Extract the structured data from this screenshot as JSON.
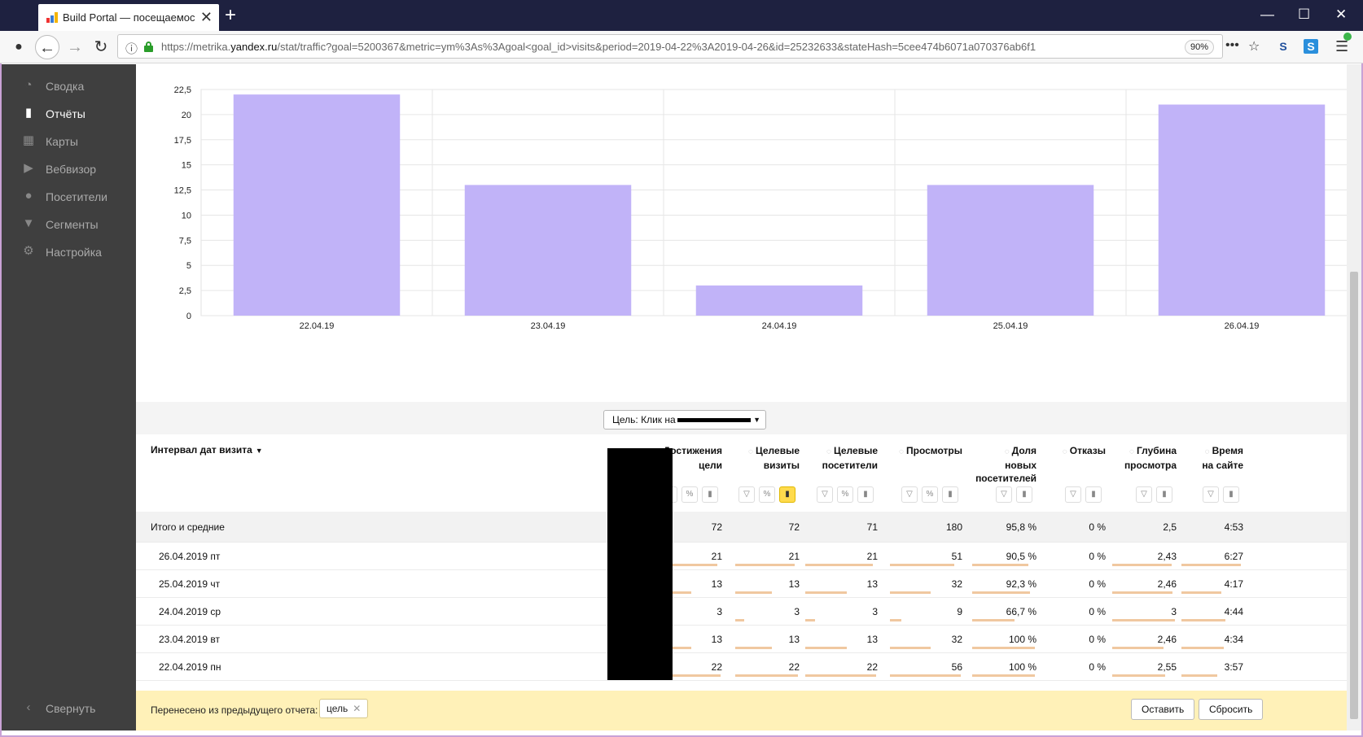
{
  "browser": {
    "tab_title": "Build Portal — посещаемость",
    "tab_close": "✕",
    "new_tab": "+",
    "url_prefix": "https://metrika.",
    "url_domain": "yandex.ru",
    "url_rest": "/stat/traffic?goal=5200367&metric=ym%3As%3Agoal<goal_id>visits&period=2019-04-22%3A2019-04-26&id=25232633&stateHash=5cee474b6071a070376ab6f1",
    "zoom": "90%",
    "colors": {
      "titlebar": "#1e2140",
      "lock": "#2a9d2a"
    }
  },
  "sidebar": {
    "items": [
      {
        "label": "Сводка",
        "icon": "dashboard-icon"
      },
      {
        "label": "Отчёты",
        "icon": "bar-chart-icon",
        "active": true
      },
      {
        "label": "Карты",
        "icon": "map-icon"
      },
      {
        "label": "Вебвизор",
        "icon": "play-icon"
      },
      {
        "label": "Посетители",
        "icon": "user-icon"
      },
      {
        "label": "Сегменты",
        "icon": "filter-icon"
      },
      {
        "label": "Настройка",
        "icon": "gear-icon"
      }
    ],
    "collapse_label": "Свернуть"
  },
  "chart_data": {
    "type": "bar",
    "categories": [
      "22.04.19",
      "23.04.19",
      "24.04.19",
      "25.04.19",
      "26.04.19"
    ],
    "values": [
      22,
      13,
      3,
      13,
      21
    ],
    "yticks": [
      "0",
      "2,5",
      "5",
      "7,5",
      "10",
      "12,5",
      "15",
      "17,5",
      "20",
      "22,5"
    ],
    "ylim": [
      0,
      22.5
    ],
    "grid": true,
    "bar_color": "#c1b3f8"
  },
  "table": {
    "goal_selector_label": "Цель: Клик на",
    "first_column_header": "Интервал дат визита",
    "sort_marker": "▼",
    "columns": [
      {
        "label": "Достижения\nцели"
      },
      {
        "label": "Целевые\nвизиты"
      },
      {
        "label": "Целевые\nпосетители"
      },
      {
        "label": "Просмотры"
      },
      {
        "label": "Доля\nновых\nпосетителей"
      },
      {
        "label": "Отказы"
      },
      {
        "label": "Глубина\nпросмотра"
      },
      {
        "label": "Время\nна сайте"
      }
    ],
    "total": {
      "label": "Итого и средние",
      "values": [
        "72",
        "72",
        "71",
        "180",
        "95,8 %",
        "0 %",
        "2,5",
        "4:53"
      ]
    },
    "rows": [
      {
        "label": "26.04.2019 пт",
        "values": [
          "21",
          "21",
          "21",
          "51",
          "90,5 %",
          "0 %",
          "2,43",
          "6:27"
        ],
        "bars": [
          0.95,
          0.95,
          0.95,
          0.91,
          0.9,
          0,
          0.95,
          0.99
        ]
      },
      {
        "label": "25.04.2019 чт",
        "values": [
          "13",
          "13",
          "13",
          "32",
          "92,3 %",
          "0 %",
          "2,46",
          "4:17"
        ],
        "bars": [
          0.59,
          0.59,
          0.59,
          0.57,
          0.92,
          0,
          0.96,
          0.66
        ]
      },
      {
        "label": "24.04.2019 ср",
        "values": [
          "3",
          "3",
          "3",
          "9",
          "66,7 %",
          "0 %",
          "3",
          "4:44"
        ],
        "bars": [
          0.14,
          0.14,
          0.14,
          0.16,
          0.67,
          0,
          1.0,
          0.73
        ]
      },
      {
        "label": "23.04.2019 вт",
        "values": [
          "13",
          "13",
          "13",
          "32",
          "100 %",
          "0 %",
          "2,46",
          "4:34"
        ],
        "bars": [
          0.59,
          0.59,
          0.59,
          0.57,
          1.0,
          0,
          0.82,
          0.7
        ]
      },
      {
        "label": "22.04.2019 пн",
        "values": [
          "22",
          "22",
          "22",
          "56",
          "100 %",
          "0 %",
          "2,55",
          "3:57"
        ],
        "bars": [
          1.0,
          1.0,
          1.0,
          1.0,
          1.0,
          0,
          0.85,
          0.6
        ]
      }
    ]
  },
  "notice": {
    "text": "Перенесено из предыдущего отчета:",
    "chip": "цель",
    "keep_button": "Оставить",
    "reset_button": "Сбросить"
  }
}
